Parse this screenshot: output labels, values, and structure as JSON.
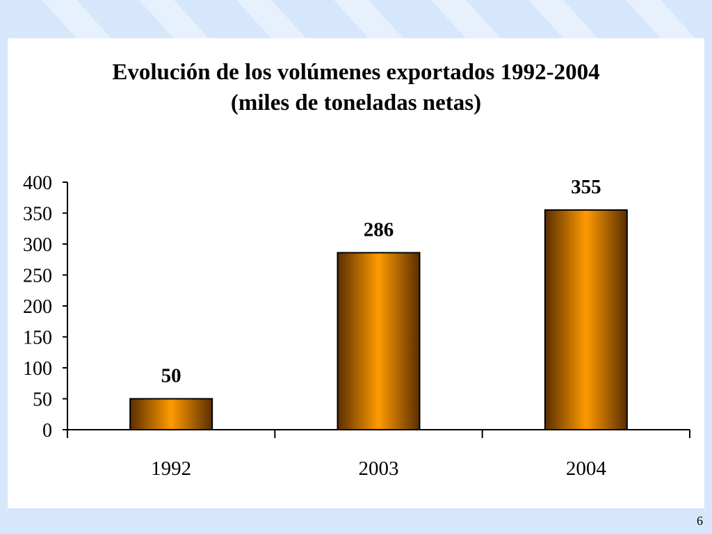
{
  "slide": {
    "page_number": "6"
  },
  "chart_data": {
    "type": "bar",
    "title": "Evolución de los volúmenes exportados 1992-2004",
    "subtitle": "(miles de toneladas netas)",
    "categories": [
      "1992",
      "2003",
      "2004"
    ],
    "values": [
      50,
      286,
      355
    ],
    "data_labels": [
      "50",
      "286",
      "355"
    ],
    "xlabel": "",
    "ylabel": "",
    "ylim": [
      0,
      400
    ],
    "yticks": [
      0,
      50,
      100,
      150,
      200,
      250,
      300,
      350,
      400
    ],
    "grid": false,
    "legend": "none",
    "colors": {
      "bar_center": "#ff9a00",
      "bar_edge": "#5a2e00",
      "axis": "#000000"
    }
  }
}
